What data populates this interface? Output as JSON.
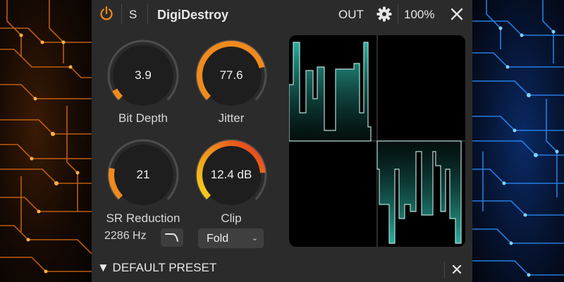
{
  "header": {
    "solo_label": "S",
    "title": "DigiDestroy",
    "output_label": "OUT",
    "zoom": "100%"
  },
  "knobs": {
    "bit_depth": {
      "value": "3.9",
      "label": "Bit Depth",
      "fill": 0.03,
      "color": "#f08a1c"
    },
    "jitter": {
      "value": "77.6",
      "label": "Jitter",
      "fill": 0.78,
      "color": "#f08a1c"
    },
    "sr_reduction": {
      "value": "21",
      "label": "SR Reduction",
      "fill": 0.21,
      "color": "#f08a1c"
    },
    "clip": {
      "value": "12.4 dB",
      "label": "Clip",
      "fill": 0.82,
      "color": "gradient"
    }
  },
  "sr_frequency": "2286 Hz",
  "clip_mode": {
    "selected": "Fold"
  },
  "footer": {
    "preset_name": "▼ DEFAULT PRESET"
  },
  "colors": {
    "accent": "#f08a1c",
    "scope_wave": "#2bb9a8",
    "panel": "#2b2b2b"
  },
  "icons": {
    "power": "power-icon",
    "gear": "gear-icon",
    "close": "close-icon",
    "filter": "lowpass-filter-icon",
    "chevron": "chevron-down-icon"
  }
}
